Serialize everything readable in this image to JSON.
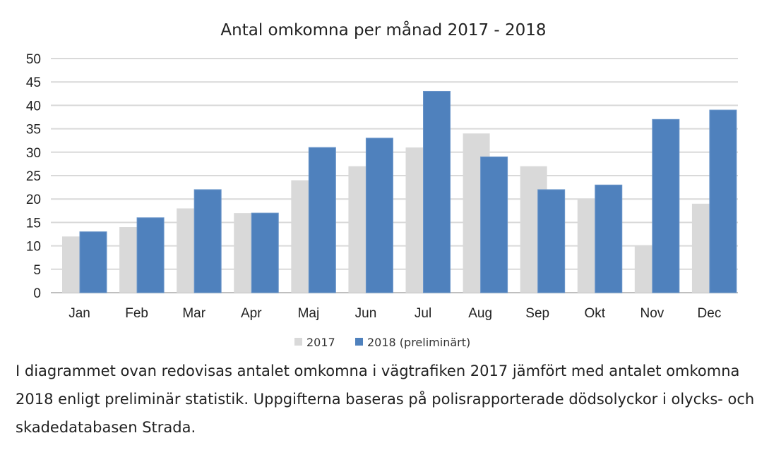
{
  "chart_data": {
    "type": "bar",
    "title": "Antal omkomna per månad 2017 - 2018",
    "categories": [
      "Jan",
      "Feb",
      "Mar",
      "Apr",
      "Maj",
      "Jun",
      "Jul",
      "Aug",
      "Sep",
      "Okt",
      "Nov",
      "Dec"
    ],
    "series": [
      {
        "name": "2017",
        "color": "#d9d9d9",
        "values": [
          12,
          14,
          18,
          17,
          24,
          27,
          31,
          34,
          27,
          20,
          10,
          19
        ]
      },
      {
        "name": "2018 (preliminärt)",
        "color": "#4f81bd",
        "values": [
          13,
          16,
          22,
          17,
          31,
          33,
          43,
          29,
          22,
          23,
          37,
          39
        ]
      }
    ],
    "yticks": [
      "0",
      "5",
      "10",
      "15",
      "20",
      "25",
      "30",
      "35",
      "40",
      "45",
      "50"
    ],
    "ylim": [
      0,
      50
    ],
    "grid": true,
    "legend": "bottom",
    "xlabel": "",
    "ylabel": ""
  },
  "caption": "I diagrammet ovan redovisas antalet omkomna i vägtrafiken 2017 jämfört med antalet omkomna 2018 enligt preliminär statistik. Uppgifterna baseras på polisrapporterade dödsolyckor i olycks- och skadedatabasen Strada."
}
